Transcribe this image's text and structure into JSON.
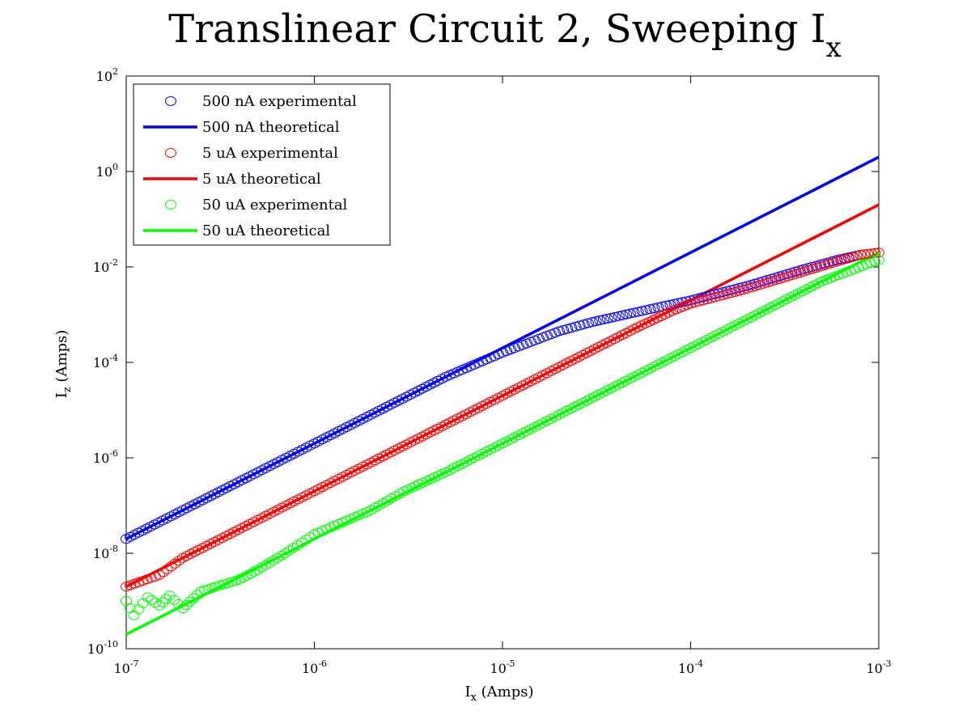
{
  "chart_data": {
    "type": "scatter",
    "title": "Translinear Circuit 2, Sweeping I",
    "title_subscript": "x",
    "xlabel": "I",
    "xlabel_subscript": "x",
    "xlabel_unit": " (Amps)",
    "ylabel": "I",
    "ylabel_subscript": "z",
    "ylabel_unit": " (Amps)",
    "x_scale": "log",
    "y_scale": "log",
    "xlim": [
      1e-07,
      0.001
    ],
    "ylim": [
      1e-10,
      100
    ],
    "x_ticks": [
      {
        "value": 1e-07,
        "base": "10",
        "exp": "-7"
      },
      {
        "value": 1e-06,
        "base": "10",
        "exp": "-6"
      },
      {
        "value": 1e-05,
        "base": "10",
        "exp": "-5"
      },
      {
        "value": 0.0001,
        "base": "10",
        "exp": "-4"
      },
      {
        "value": 0.001,
        "base": "10",
        "exp": "-3"
      }
    ],
    "y_ticks": [
      {
        "value": 1e-10,
        "base": "10",
        "exp": "-10"
      },
      {
        "value": 1e-08,
        "base": "10",
        "exp": "-8"
      },
      {
        "value": 1e-06,
        "base": "10",
        "exp": "-6"
      },
      {
        "value": 0.0001,
        "base": "10",
        "exp": "-4"
      },
      {
        "value": 0.01,
        "base": "10",
        "exp": "-2"
      },
      {
        "value": 1,
        "base": "10",
        "exp": "0"
      },
      {
        "value": 100,
        "base": "10",
        "exp": "2"
      }
    ],
    "grid": false,
    "legend_position": "top-left",
    "series": [
      {
        "name": "500 nA experimental",
        "kind": "scatter",
        "marker": "open-circle",
        "color": "#0000ff",
        "x": [
          1e-07,
          2e-07,
          5e-07,
          1e-06,
          2e-06,
          5e-06,
          1e-05,
          2e-05,
          3e-05,
          5e-05,
          0.0001,
          0.0002,
          0.0004,
          0.0006,
          0.0008
        ],
        "y": [
          2e-08,
          8e-08,
          5e-07,
          2e-06,
          8e-06,
          5e-05,
          0.00016,
          0.00045,
          0.0007,
          0.0011,
          0.002,
          0.004,
          0.009,
          0.014,
          0.018
        ]
      },
      {
        "name": "500 nA theoretical",
        "kind": "line",
        "color": "#0000ff",
        "x": [
          1e-07,
          0.001
        ],
        "y": [
          2e-08,
          2
        ]
      },
      {
        "name": "5 uA experimental",
        "kind": "scatter",
        "marker": "open-circle",
        "color": "#ff0000",
        "x": [
          1e-07,
          1.5e-07,
          2e-07,
          5e-07,
          1e-06,
          2e-06,
          5e-06,
          1e-05,
          2e-05,
          5e-05,
          8e-05,
          0.0001,
          0.0002,
          0.0004,
          0.0006,
          0.0008,
          0.001
        ],
        "y": [
          2e-09,
          3.5e-09,
          8e-09,
          5e-08,
          2e-07,
          8e-07,
          5e-06,
          2e-05,
          8e-05,
          0.0005,
          0.0012,
          0.0017,
          0.0035,
          0.008,
          0.013,
          0.018,
          0.02
        ]
      },
      {
        "name": "5 uA theoretical",
        "kind": "line",
        "color": "#ff0000",
        "x": [
          1e-07,
          0.001
        ],
        "y": [
          2e-09,
          0.2
        ]
      },
      {
        "name": "50 uA experimental",
        "kind": "scatter",
        "marker": "open-circle",
        "color": "#00ff00",
        "x": [
          1e-07,
          1.1e-07,
          1.3e-07,
          1.5e-07,
          1.7e-07,
          2e-07,
          2.5e-07,
          3e-07,
          4e-07,
          5e-07,
          7e-07,
          1e-06,
          2e-06,
          3e-06,
          5e-06,
          1e-05,
          2e-05,
          5e-05,
          0.0001,
          0.0002,
          0.0005,
          0.001
        ],
        "y": [
          1e-09,
          5e-10,
          1.2e-09,
          8e-10,
          1.3e-09,
          7e-10,
          1.6e-09,
          2e-09,
          2.8e-09,
          4.5e-09,
          1e-08,
          2.5e-08,
          8e-08,
          2e-07,
          5e-07,
          2e-06,
          8e-06,
          5e-05,
          0.0002,
          0.0008,
          0.005,
          0.014
        ]
      },
      {
        "name": "50 uA theoretical",
        "kind": "line",
        "color": "#00ff00",
        "x": [
          1e-07,
          0.001
        ],
        "y": [
          2e-10,
          0.02
        ]
      }
    ]
  }
}
